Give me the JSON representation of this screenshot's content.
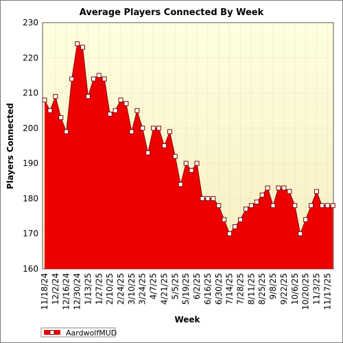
{
  "chart_data": {
    "type": "area",
    "title": "Average Players Connected By Week",
    "xlabel": "Week",
    "ylabel": "Players Connected",
    "ylim": [
      160,
      230
    ],
    "yticks": [
      160,
      170,
      180,
      190,
      200,
      210,
      220,
      230
    ],
    "grid": true,
    "legend_position": "bottom-left",
    "x_labels": [
      "11/18/24",
      "12/2/24",
      "12/16/24",
      "12/30/24",
      "1/13/25",
      "1/27/25",
      "2/10/25",
      "2/24/25",
      "3/10/25",
      "3/24/25",
      "4/7/25",
      "4/21/25",
      "5/5/25",
      "5/19/25",
      "6/2/25",
      "6/16/25",
      "6/30/25",
      "7/14/25",
      "7/28/25",
      "8/11/25",
      "8/25/25",
      "9/8/25",
      "9/22/25",
      "10/6/25",
      "10/20/25",
      "11/3/25",
      "11/17/25"
    ],
    "series": [
      {
        "name": "AardwolfMUD",
        "color": "#ee0000",
        "x": [
          "11/18/24",
          "11/25/24",
          "12/2/24",
          "12/9/24",
          "12/16/24",
          "12/23/24",
          "12/30/24",
          "1/6/25",
          "1/13/25",
          "1/20/25",
          "1/27/25",
          "2/3/25",
          "2/10/25",
          "2/17/25",
          "2/24/25",
          "3/3/25",
          "3/10/25",
          "3/17/25",
          "3/24/25",
          "3/31/25",
          "4/7/25",
          "4/14/25",
          "4/21/25",
          "4/28/25",
          "5/5/25",
          "5/12/25",
          "5/19/25",
          "5/26/25",
          "6/2/25",
          "6/9/25",
          "6/16/25",
          "6/23/25",
          "6/30/25",
          "7/7/25",
          "7/14/25",
          "7/21/25",
          "7/28/25",
          "8/4/25",
          "8/11/25",
          "8/18/25",
          "8/25/25",
          "9/1/25",
          "9/8/25",
          "9/15/25",
          "9/22/25",
          "9/29/25",
          "10/6/25",
          "10/13/25",
          "10/20/25",
          "10/27/25",
          "11/3/25",
          "11/10/25",
          "11/17/25",
          "11/24/25"
        ],
        "values": [
          208,
          205,
          209,
          203,
          199,
          214,
          224,
          223,
          209,
          214,
          215,
          214,
          204,
          205,
          208,
          207,
          199,
          205,
          200,
          193,
          200,
          200,
          195,
          199,
          192,
          184,
          190,
          188,
          190,
          180,
          180,
          180,
          178,
          174,
          170,
          172,
          174,
          177,
          178,
          179,
          181,
          183,
          178,
          183,
          183,
          182,
          178,
          170,
          174,
          178,
          182,
          178,
          178,
          178
        ]
      }
    ]
  }
}
